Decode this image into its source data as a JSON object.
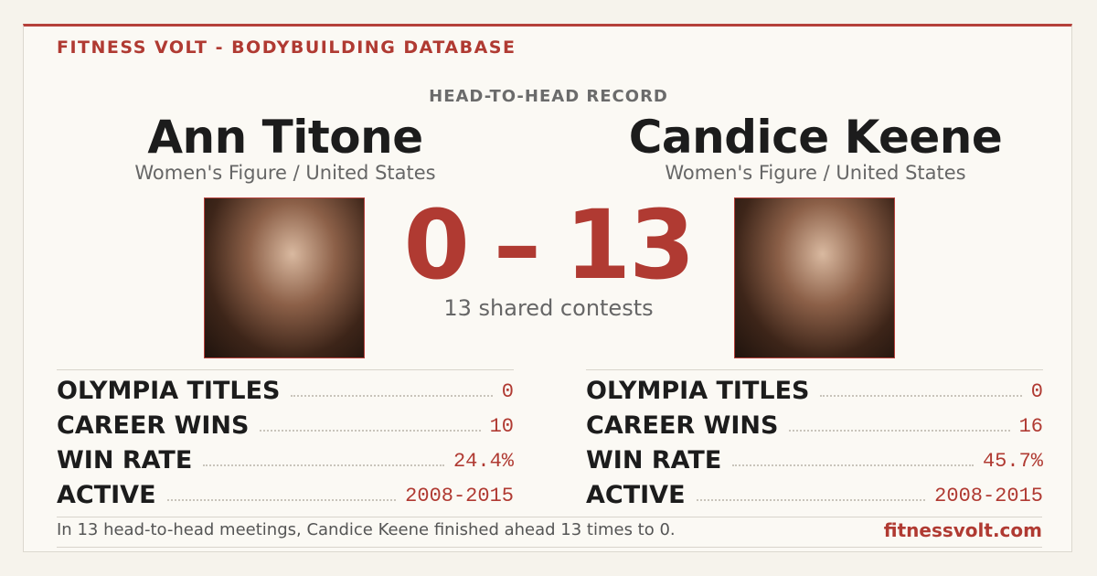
{
  "header": {
    "brand": "FITNESS VOLT - BODYBUILDING DATABASE",
    "subtitle": "HEAD-TO-HEAD RECORD"
  },
  "athletes": [
    {
      "name": "Ann Titone",
      "division": "Women's Figure / United States",
      "stats": [
        {
          "label": "OLYMPIA TITLES",
          "value": "0"
        },
        {
          "label": "CAREER WINS",
          "value": "10"
        },
        {
          "label": "WIN RATE",
          "value": "24.4%"
        },
        {
          "label": "ACTIVE",
          "value": "2008-2015"
        }
      ]
    },
    {
      "name": "Candice Keene",
      "division": "Women's Figure / United States",
      "stats": [
        {
          "label": "OLYMPIA TITLES",
          "value": "0"
        },
        {
          "label": "CAREER WINS",
          "value": "16"
        },
        {
          "label": "WIN RATE",
          "value": "45.7%"
        },
        {
          "label": "ACTIVE",
          "value": "2008-2015"
        }
      ]
    }
  ],
  "score": {
    "left": "0",
    "separator": "–",
    "right": "13"
  },
  "shared": "13 shared contests",
  "footer": {
    "text": "In 13 head-to-head meetings, Candice Keene finished ahead 13 times to 0.",
    "site": "fitnessvolt.com"
  }
}
